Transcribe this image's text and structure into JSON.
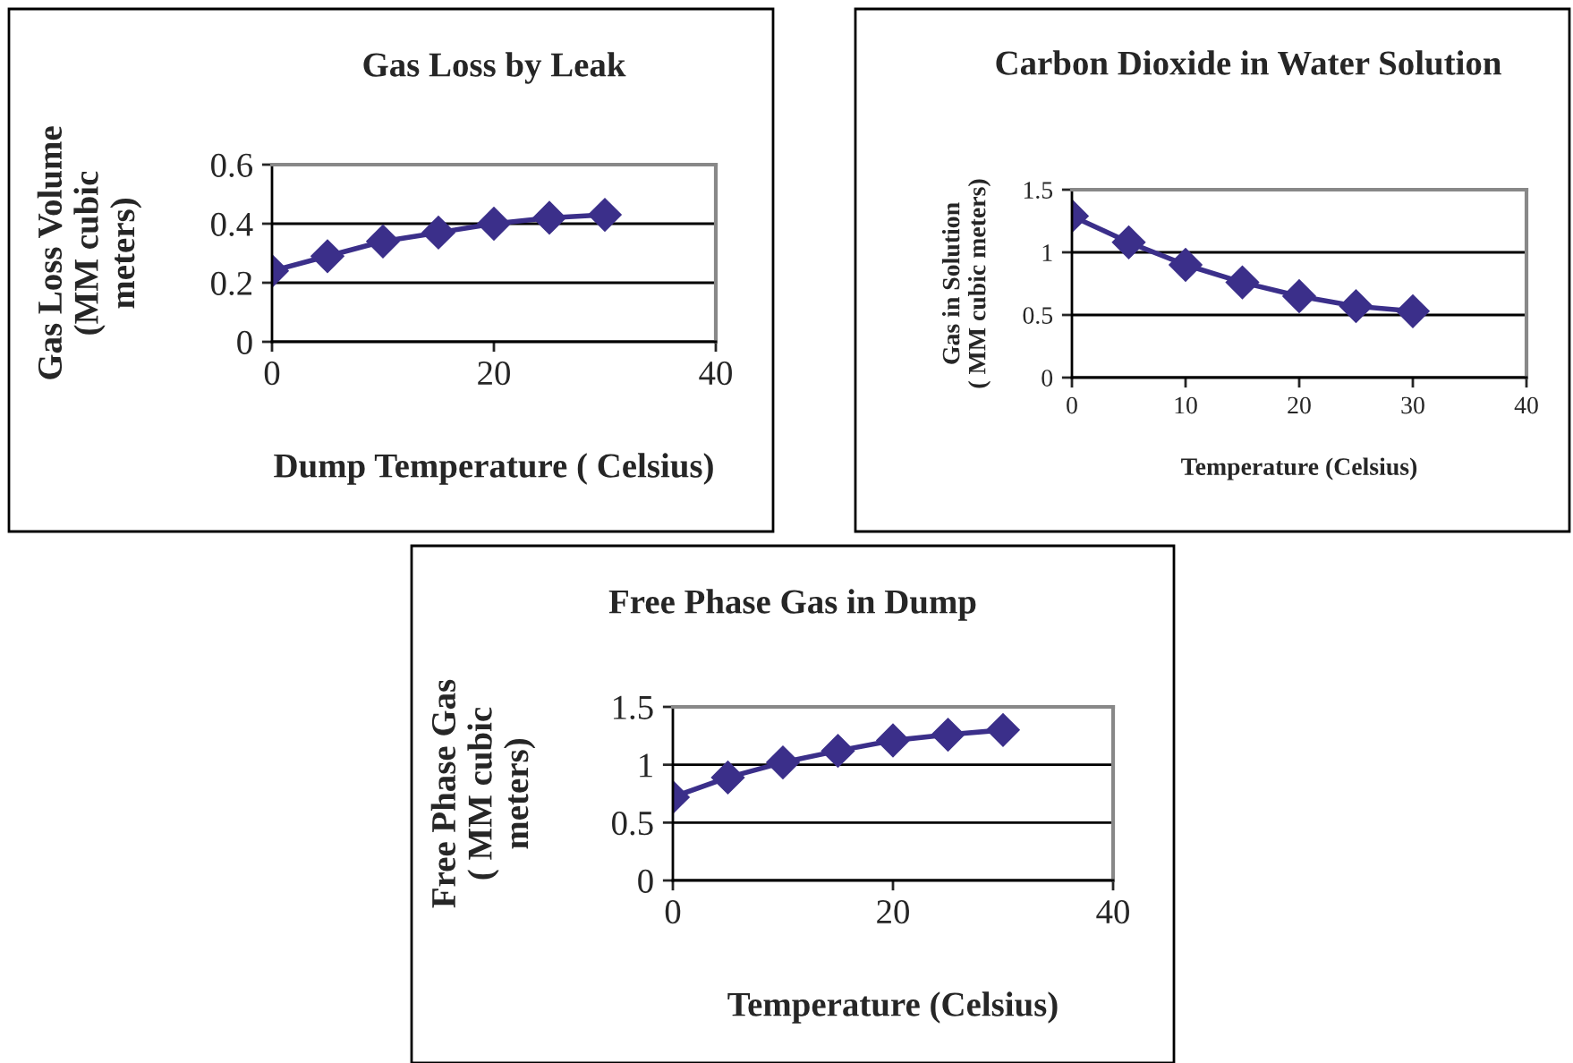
{
  "chart_data": [
    {
      "type": "line",
      "title": "Gas Loss by Leak",
      "xlabel": "Dump Temperature ( Celsius)",
      "ylabel": "Gas Loss Volume\n(MM cubic\nmeters)",
      "x": [
        0,
        5,
        10,
        15,
        20,
        25,
        30
      ],
      "series": [
        {
          "color": "#3b2f8a",
          "values": [
            0.24,
            0.29,
            0.34,
            0.37,
            0.4,
            0.42,
            0.43
          ]
        }
      ],
      "xlim": [
        0,
        40
      ],
      "xticks": [
        0,
        20,
        40
      ],
      "ylim": [
        0,
        0.6
      ],
      "yticks": [
        0,
        0.2,
        0.4,
        0.6
      ],
      "grid": "y",
      "marker": "diamond",
      "line_style": "solid"
    },
    {
      "type": "line",
      "title": "Carbon Dioxide in Water Solution",
      "xlabel": "Temperature (Celsius)",
      "ylabel": "Gas in Solution\n( MM cubic meters)",
      "x": [
        0,
        5,
        10,
        15,
        20,
        25,
        30
      ],
      "series": [
        {
          "color": "#3b2f8a",
          "values": [
            1.29,
            1.08,
            0.9,
            0.76,
            0.65,
            0.57,
            0.53
          ]
        }
      ],
      "xlim": [
        0,
        40
      ],
      "xticks": [
        0,
        10,
        20,
        30,
        40
      ],
      "ylim": [
        0,
        1.5
      ],
      "yticks": [
        0,
        0.5,
        1,
        1.5
      ],
      "grid": "y",
      "marker": "diamond",
      "line_style": "solid"
    },
    {
      "type": "line",
      "title": "Free Phase Gas in Dump",
      "xlabel": "Temperature (Celsius)",
      "ylabel": "Free Phase Gas\n( MM cubic\nmeters)",
      "x": [
        0,
        5,
        10,
        15,
        20,
        25,
        30
      ],
      "series": [
        {
          "color": "#3b2f8a",
          "values": [
            0.72,
            0.89,
            1.02,
            1.12,
            1.21,
            1.26,
            1.3
          ]
        }
      ],
      "xlim": [
        0,
        40
      ],
      "xticks": [
        0,
        20,
        40
      ],
      "ylim": [
        0,
        1.5
      ],
      "yticks": [
        0,
        0.5,
        1,
        1.5
      ],
      "grid": "y",
      "marker": "diamond",
      "line_style": "solid"
    }
  ]
}
